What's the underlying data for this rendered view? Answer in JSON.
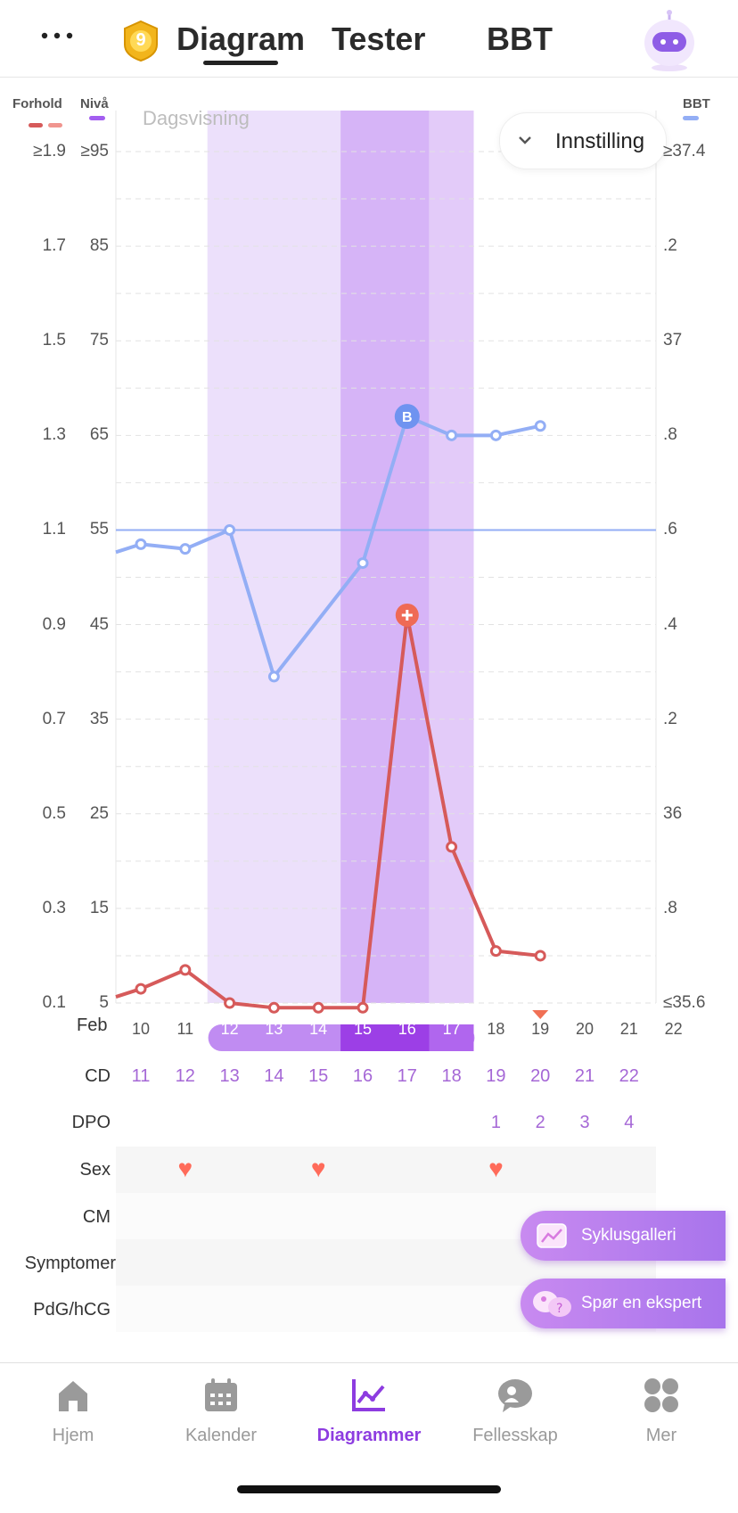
{
  "header": {
    "menu_icon": "more-dots-icon",
    "badge_number": "9",
    "tabs": [
      {
        "label": "Diagram",
        "active": true
      },
      {
        "label": "Tester",
        "active": false
      },
      {
        "label": "BBT",
        "active": false
      }
    ],
    "assistant_icon": "robot-assistant-icon"
  },
  "chart": {
    "legend_left_1": "Forhold",
    "legend_left_2": "Nivå",
    "legend_right": "BBT",
    "view_mode": "Dagsvisning",
    "settings_label": "Innstilling",
    "y_ratio_labels": [
      "≥1.9",
      "1.7",
      "1.5",
      "1.3",
      "1.1",
      "0.9",
      "0.7",
      "0.5",
      "0.3",
      "0.1"
    ],
    "y_level_labels": [
      "≥95",
      "85",
      "75",
      "65",
      "55",
      "45",
      "35",
      "25",
      "15",
      "5"
    ],
    "y_bbt_labels": [
      "≥37.4",
      ".2",
      "37",
      ".8",
      ".6",
      ".4",
      ".2",
      "36",
      ".8",
      "≤35.6"
    ],
    "month": "Feb",
    "dates": [
      "10",
      "11",
      "12",
      "13",
      "14",
      "15",
      "16",
      "17",
      "18",
      "19",
      "20",
      "21",
      "22"
    ],
    "colors": {
      "bbt": "#93aef5",
      "ratio": "#d65a5a",
      "fertile": "#ece0fb",
      "peak": "#d6b4f7",
      "peak_day": "#e3cbf9"
    }
  },
  "chart_data": {
    "type": "line",
    "x": [
      "Feb 9",
      "Feb 10",
      "Feb 11",
      "Feb 12",
      "Feb 13",
      "Feb 14",
      "Feb 15",
      "Feb 16",
      "Feb 17",
      "Feb 18",
      "Feb 19"
    ],
    "series": [
      {
        "name": "BBT",
        "axis": "right",
        "values": [
          36.54,
          36.57,
          36.56,
          36.6,
          36.29,
          null,
          36.53,
          36.84,
          36.8,
          36.8,
          36.82
        ]
      },
      {
        "name": "Forhold",
        "axis": "left",
        "values": [
          0.1,
          0.13,
          0.17,
          0.1,
          0.09,
          0.09,
          0.09,
          0.92,
          0.43,
          0.21,
          0.2
        ]
      }
    ],
    "ovulation_marker_day": "Feb 16",
    "bbt_coverline": 36.6,
    "ylim_ratio": [
      0.1,
      1.9
    ],
    "ylim_level": [
      5,
      95
    ],
    "ylim_bbt": [
      35.6,
      37.4
    ],
    "grid": true
  },
  "rows": {
    "cd_label": "CD",
    "cd_values": [
      "11",
      "12",
      "13",
      "14",
      "15",
      "16",
      "17",
      "18",
      "19",
      "20",
      "21",
      "22"
    ],
    "dpo_label": "DPO",
    "dpo_values": [
      "1",
      "2",
      "3",
      "4"
    ],
    "sex_label": "Sex",
    "sex_days": [
      "11",
      "14",
      "18"
    ],
    "cm_label": "CM",
    "symptoms_label": "Symptomer",
    "pdg_label": "PdG/hCG"
  },
  "fabs": {
    "gallery_label": "Syklusgalleri",
    "expert_label": "Spør en ekspert"
  },
  "nav": [
    {
      "label": "Hjem",
      "icon": "home-icon",
      "active": false
    },
    {
      "label": "Kalender",
      "icon": "calendar-icon",
      "active": false
    },
    {
      "label": "Diagrammer",
      "icon": "chart-icon",
      "active": true
    },
    {
      "label": "Fellesskap",
      "icon": "community-icon",
      "active": false
    },
    {
      "label": "Mer",
      "icon": "more-grid-icon",
      "active": false
    }
  ]
}
